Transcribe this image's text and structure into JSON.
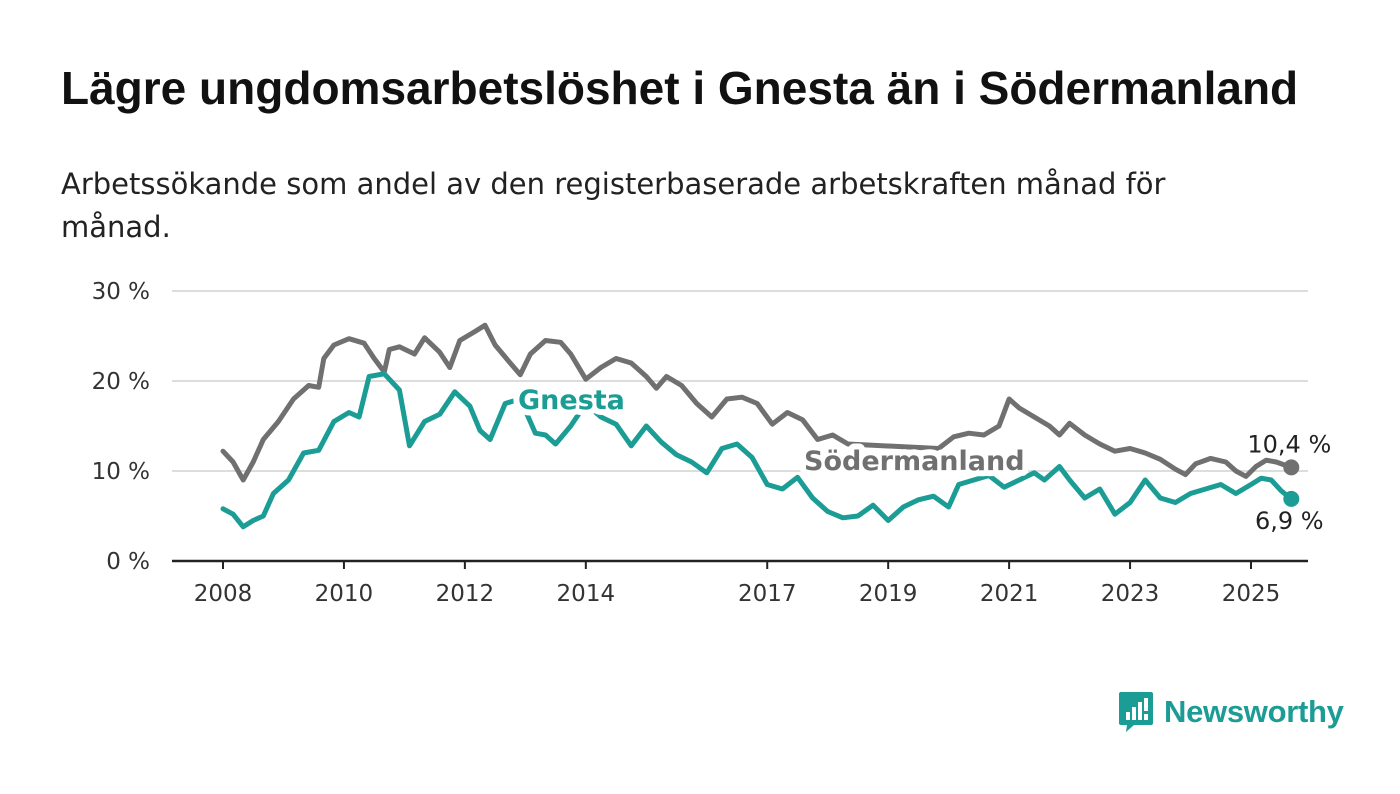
{
  "title": "Lägre ungdomsarbetslöshet i Gnesta än i Södermanland",
  "subtitle": "Arbetssökande som andel av den registerbaserade arbetskraften månad för månad.",
  "brand": {
    "name": "Newsworthy",
    "icon": "newsworthy-logo-icon",
    "color": "#1b9c95"
  },
  "chart_data": {
    "type": "line",
    "title": "Lägre ungdomsarbetslöshet i Gnesta än i Södermanland",
    "subtitle": "Arbetssökande som andel av den registerbaserade arbetskraften månad för månad.",
    "xlabel": "",
    "ylabel": "",
    "x_ticks": [
      "2008",
      "2010",
      "2012",
      "2014",
      "2017",
      "2019",
      "2021",
      "2023",
      "2025"
    ],
    "y_ticks": [
      "0 %",
      "10 %",
      "20 %",
      "30 %"
    ],
    "ylim": [
      0,
      30
    ],
    "grid": true,
    "legend": "none (series labeled directly on lines)",
    "series": [
      {
        "name": "Södermanland",
        "color": "#707070",
        "end_label": "10,4 %",
        "points": [
          [
            "2008-01",
            12.2
          ],
          [
            "2008-03",
            11.0
          ],
          [
            "2008-05",
            9.0
          ],
          [
            "2008-07",
            11.0
          ],
          [
            "2008-09",
            13.5
          ],
          [
            "2008-12",
            15.5
          ],
          [
            "2009-03",
            18.0
          ],
          [
            "2009-06",
            19.5
          ],
          [
            "2009-08",
            19.3
          ],
          [
            "2009-09",
            22.5
          ],
          [
            "2009-11",
            24.0
          ],
          [
            "2010-02",
            24.7
          ],
          [
            "2010-05",
            24.2
          ],
          [
            "2010-07",
            22.5
          ],
          [
            "2010-09",
            21.0
          ],
          [
            "2010-10",
            23.5
          ],
          [
            "2010-12",
            23.8
          ],
          [
            "2011-03",
            23.0
          ],
          [
            "2011-05",
            24.8
          ],
          [
            "2011-08",
            23.2
          ],
          [
            "2011-10",
            21.5
          ],
          [
            "2011-12",
            24.5
          ],
          [
            "2012-03",
            25.5
          ],
          [
            "2012-05",
            26.2
          ],
          [
            "2012-07",
            24.0
          ],
          [
            "2012-10",
            22.0
          ],
          [
            "2012-12",
            20.7
          ],
          [
            "2013-02",
            23.0
          ],
          [
            "2013-05",
            24.5
          ],
          [
            "2013-08",
            24.3
          ],
          [
            "2013-10",
            23.0
          ],
          [
            "2014-01",
            20.2
          ],
          [
            "2014-04",
            21.5
          ],
          [
            "2014-07",
            22.5
          ],
          [
            "2014-10",
            22.0
          ],
          [
            "2015-01",
            20.5
          ],
          [
            "2015-03",
            19.2
          ],
          [
            "2015-05",
            20.5
          ],
          [
            "2015-08",
            19.5
          ],
          [
            "2015-11",
            17.5
          ],
          [
            "2016-02",
            16.0
          ],
          [
            "2016-05",
            18.0
          ],
          [
            "2016-08",
            18.2
          ],
          [
            "2016-11",
            17.5
          ],
          [
            "2017-02",
            15.2
          ],
          [
            "2017-05",
            16.5
          ],
          [
            "2017-08",
            15.7
          ],
          [
            "2017-11",
            13.5
          ],
          [
            "2018-02",
            14.0
          ],
          [
            "2018-05",
            13.0
          ],
          [
            "2019-11",
            12.5
          ],
          [
            "2020-02",
            13.8
          ],
          [
            "2020-05",
            14.2
          ],
          [
            "2020-08",
            14.0
          ],
          [
            "2020-11",
            15.0
          ],
          [
            "2021-01",
            18.0
          ],
          [
            "2021-03",
            17.0
          ],
          [
            "2021-06",
            16.0
          ],
          [
            "2021-09",
            15.0
          ],
          [
            "2021-11",
            14.0
          ],
          [
            "2022-01",
            15.3
          ],
          [
            "2022-04",
            14.0
          ],
          [
            "2022-07",
            13.0
          ],
          [
            "2022-10",
            12.2
          ],
          [
            "2023-01",
            12.5
          ],
          [
            "2023-04",
            12.0
          ],
          [
            "2023-07",
            11.3
          ],
          [
            "2023-10",
            10.2
          ],
          [
            "2023-12",
            9.6
          ],
          [
            "2024-02",
            10.8
          ],
          [
            "2024-05",
            11.4
          ],
          [
            "2024-08",
            11.0
          ],
          [
            "2024-10",
            10.0
          ],
          [
            "2024-12",
            9.4
          ],
          [
            "2025-02",
            10.5
          ],
          [
            "2025-04",
            11.2
          ],
          [
            "2025-06",
            11.0
          ],
          [
            "2025-09",
            10.4
          ]
        ]
      },
      {
        "name": "Gnesta",
        "color": "#1b9c95",
        "end_label": "6,9 %",
        "points": [
          [
            "2008-01",
            5.8
          ],
          [
            "2008-03",
            5.2
          ],
          [
            "2008-05",
            3.8
          ],
          [
            "2008-07",
            4.5
          ],
          [
            "2008-09",
            5.0
          ],
          [
            "2008-11",
            7.5
          ],
          [
            "2009-02",
            9.0
          ],
          [
            "2009-05",
            12.0
          ],
          [
            "2009-08",
            12.3
          ],
          [
            "2009-11",
            15.5
          ],
          [
            "2010-02",
            16.5
          ],
          [
            "2010-04",
            16.0
          ],
          [
            "2010-06",
            20.5
          ],
          [
            "2010-09",
            20.8
          ],
          [
            "2010-12",
            19.0
          ],
          [
            "2011-02",
            12.8
          ],
          [
            "2011-05",
            15.5
          ],
          [
            "2011-08",
            16.3
          ],
          [
            "2011-11",
            18.8
          ],
          [
            "2012-02",
            17.2
          ],
          [
            "2012-04",
            14.5
          ],
          [
            "2012-06",
            13.5
          ],
          [
            "2012-09",
            17.5
          ],
          [
            "2012-12",
            18.0
          ],
          [
            "2013-03",
            14.2
          ],
          [
            "2013-05",
            14.0
          ],
          [
            "2013-07",
            13.0
          ],
          [
            "2013-10",
            15.0
          ],
          [
            "2014-01",
            17.5
          ],
          [
            "2014-04",
            16.0
          ],
          [
            "2014-07",
            15.2
          ],
          [
            "2014-10",
            12.8
          ],
          [
            "2015-01",
            15.0
          ],
          [
            "2015-04",
            13.2
          ],
          [
            "2015-07",
            11.8
          ],
          [
            "2015-10",
            11.0
          ],
          [
            "2016-01",
            9.8
          ],
          [
            "2016-04",
            12.5
          ],
          [
            "2016-07",
            13.0
          ],
          [
            "2016-10",
            11.5
          ],
          [
            "2017-01",
            8.5
          ],
          [
            "2017-04",
            8.0
          ],
          [
            "2017-07",
            9.3
          ],
          [
            "2017-10",
            7.0
          ],
          [
            "2018-01",
            5.5
          ],
          [
            "2018-04",
            4.8
          ],
          [
            "2018-07",
            5.0
          ],
          [
            "2018-10",
            6.2
          ],
          [
            "2019-01",
            4.5
          ],
          [
            "2019-04",
            6.0
          ],
          [
            "2019-07",
            6.8
          ],
          [
            "2019-10",
            7.2
          ],
          [
            "2020-01",
            6.0
          ],
          [
            "2020-03",
            8.5
          ],
          [
            "2020-06",
            9.0
          ],
          [
            "2020-09",
            9.5
          ],
          [
            "2020-12",
            8.2
          ],
          [
            "2021-03",
            9.0
          ],
          [
            "2021-06",
            9.8
          ],
          [
            "2021-08",
            9.0
          ],
          [
            "2021-11",
            10.5
          ],
          [
            "2022-01",
            9.0
          ],
          [
            "2022-04",
            7.0
          ],
          [
            "2022-07",
            8.0
          ],
          [
            "2022-10",
            5.2
          ],
          [
            "2023-01",
            6.5
          ],
          [
            "2023-04",
            9.0
          ],
          [
            "2023-07",
            7.0
          ],
          [
            "2023-10",
            6.5
          ],
          [
            "2024-01",
            7.5
          ],
          [
            "2024-04",
            8.0
          ],
          [
            "2024-07",
            8.5
          ],
          [
            "2024-10",
            7.5
          ],
          [
            "2025-01",
            8.5
          ],
          [
            "2025-03",
            9.2
          ],
          [
            "2025-05",
            9.0
          ],
          [
            "2025-07",
            7.8
          ],
          [
            "2025-09",
            6.9
          ]
        ]
      }
    ]
  }
}
